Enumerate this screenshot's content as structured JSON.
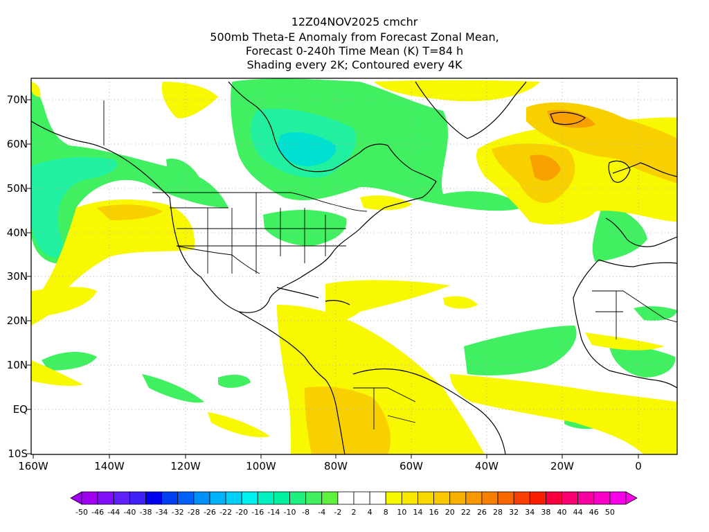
{
  "header": {
    "line1": "12Z04NOV2025 cmchr",
    "line2": "500mb Theta-E Anomaly from Forecast Zonal Mean,",
    "line3": "Forecast 0-240h Time Mean (K) T=84 h",
    "line4": "Shading every 2K; Contoured every 4K"
  },
  "map": {
    "lat_labels": [
      "70N",
      "60N",
      "50N",
      "40N",
      "30N",
      "20N",
      "10N",
      "EQ",
      "10S"
    ],
    "lon_labels": [
      "160W",
      "140W",
      "120W",
      "100W",
      "80W",
      "60W",
      "40W",
      "20W",
      "0"
    ],
    "lat_extent": [
      -10,
      75
    ],
    "lon_extent": [
      -160,
      10
    ],
    "gridlines": true,
    "boundaries": "country and US state outlines",
    "field_colors": {
      "strong_neg": "#00e0d0",
      "neg": "#20f0a0",
      "weak_neg": "#60f040",
      "weak_pos": "#f8f800",
      "pos": "#f8d000",
      "strong_pos": "#f8a000"
    }
  },
  "colorbar": {
    "labels": [
      "-50",
      "-46",
      "-44",
      "-40",
      "-38",
      "-34",
      "-32",
      "-28",
      "-26",
      "-22",
      "-20",
      "-16",
      "-14",
      "-10",
      "-8",
      "-4",
      "-2",
      "2",
      "4",
      "8",
      "10",
      "14",
      "16",
      "20",
      "22",
      "26",
      "28",
      "32",
      "34",
      "38",
      "40",
      "44",
      "46",
      "50"
    ],
    "colors": [
      "#a000f0",
      "#8010f8",
      "#6020f8",
      "#4020f8",
      "#0000f0",
      "#0040f0",
      "#0060f8",
      "#0090f8",
      "#00b0f8",
      "#00d0f8",
      "#00f0f0",
      "#00f0c0",
      "#00f0a0",
      "#20f080",
      "#40f060",
      "#60f040",
      "#ffffff",
      "#ffffff",
      "#ffffff",
      "#f8f800",
      "#f8e800",
      "#f8d800",
      "#f8c800",
      "#f8b000",
      "#f89800",
      "#f88000",
      "#f86800",
      "#f84000",
      "#f82000",
      "#f80040",
      "#f80070",
      "#f800a0",
      "#f800c8",
      "#f800e8"
    ]
  }
}
